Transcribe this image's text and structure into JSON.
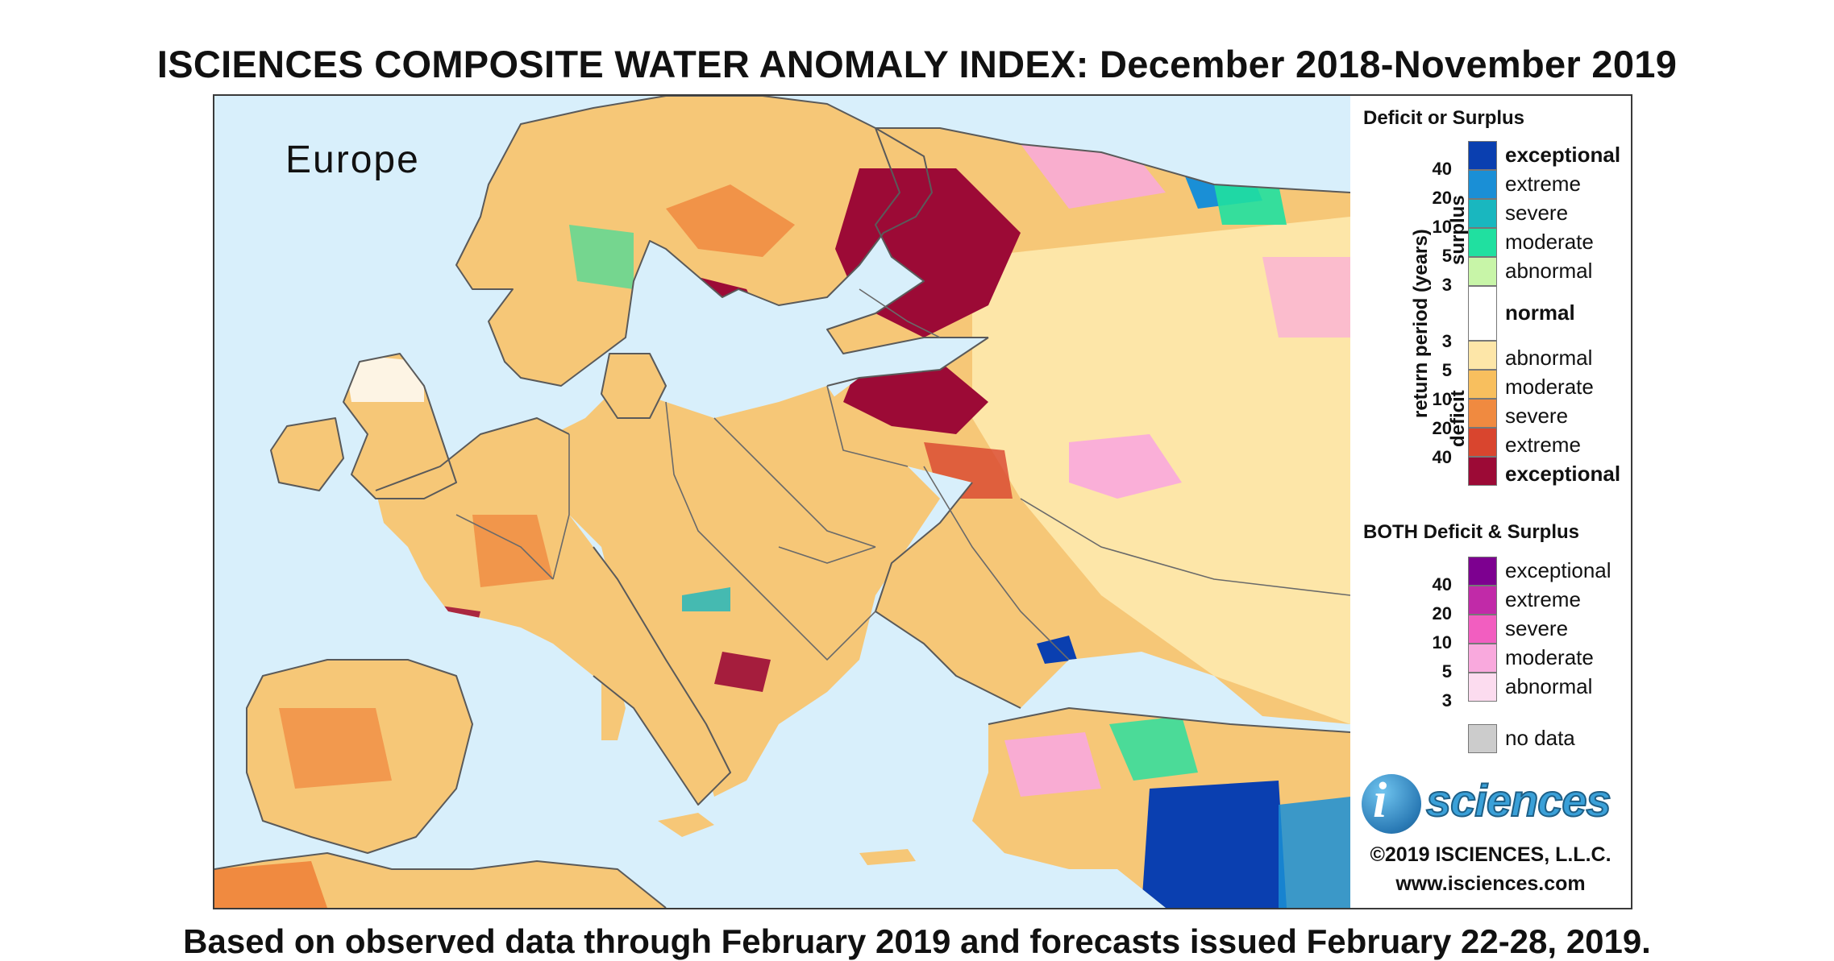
{
  "title": "ISCIENCES COMPOSITE WATER ANOMALY INDEX: December 2018-November 2019",
  "map": {
    "region_label": "Europe",
    "icon": "map-of-europe-icon",
    "colors": {
      "sea": "#d8effb",
      "land_base": "#f6c777",
      "border": "#5a5a5a"
    }
  },
  "legend": {
    "heading_single": "Deficit or Surplus",
    "axis_label": "return period (years)",
    "surplus_label": "surplus",
    "deficit_label": "deficit",
    "surplus": [
      {
        "label": "exceptional",
        "color": "#0a3fb0",
        "bold": true
      },
      {
        "label": "extreme",
        "color": "#1a8fd6",
        "bold": false
      },
      {
        "label": "severe",
        "color": "#19b7bf",
        "bold": false
      },
      {
        "label": "moderate",
        "color": "#20e0a0",
        "bold": false
      },
      {
        "label": "abnormal",
        "color": "#c8f5a8",
        "bold": false
      }
    ],
    "surplus_ticks": [
      "40",
      "20",
      "10",
      "5",
      "3"
    ],
    "normal": {
      "label": "normal",
      "color": "#ffffff"
    },
    "deficit_ticks": [
      "3",
      "5",
      "10",
      "20",
      "40"
    ],
    "deficit": [
      {
        "label": "abnormal",
        "color": "#fde6a8",
        "bold": false
      },
      {
        "label": "moderate",
        "color": "#f8bf5e",
        "bold": false
      },
      {
        "label": "severe",
        "color": "#f08a40",
        "bold": false
      },
      {
        "label": "extreme",
        "color": "#d9452e",
        "bold": false
      },
      {
        "label": "exceptional",
        "color": "#9c0a36",
        "bold": true
      }
    ],
    "heading_both": "BOTH Deficit & Surplus",
    "both": [
      {
        "label": "exceptional",
        "color": "#7d0090"
      },
      {
        "label": "extreme",
        "color": "#c12aa8"
      },
      {
        "label": "severe",
        "color": "#f25ec0"
      },
      {
        "label": "moderate",
        "color": "#f9a9dd"
      },
      {
        "label": "abnormal",
        "color": "#fcdcef"
      }
    ],
    "both_ticks": [
      "40",
      "20",
      "10",
      "5",
      "3"
    ],
    "no_data": {
      "label": "no data",
      "color": "#cccccc"
    }
  },
  "brand": {
    "logo_letter": "i",
    "logo_text": "sciences",
    "copyright": "©2019 ISCIENCES, L.L.C.",
    "website": "www.isciences.com"
  },
  "footnote": "Based on observed data through February 2019 and forecasts issued February 22-28, 2019."
}
